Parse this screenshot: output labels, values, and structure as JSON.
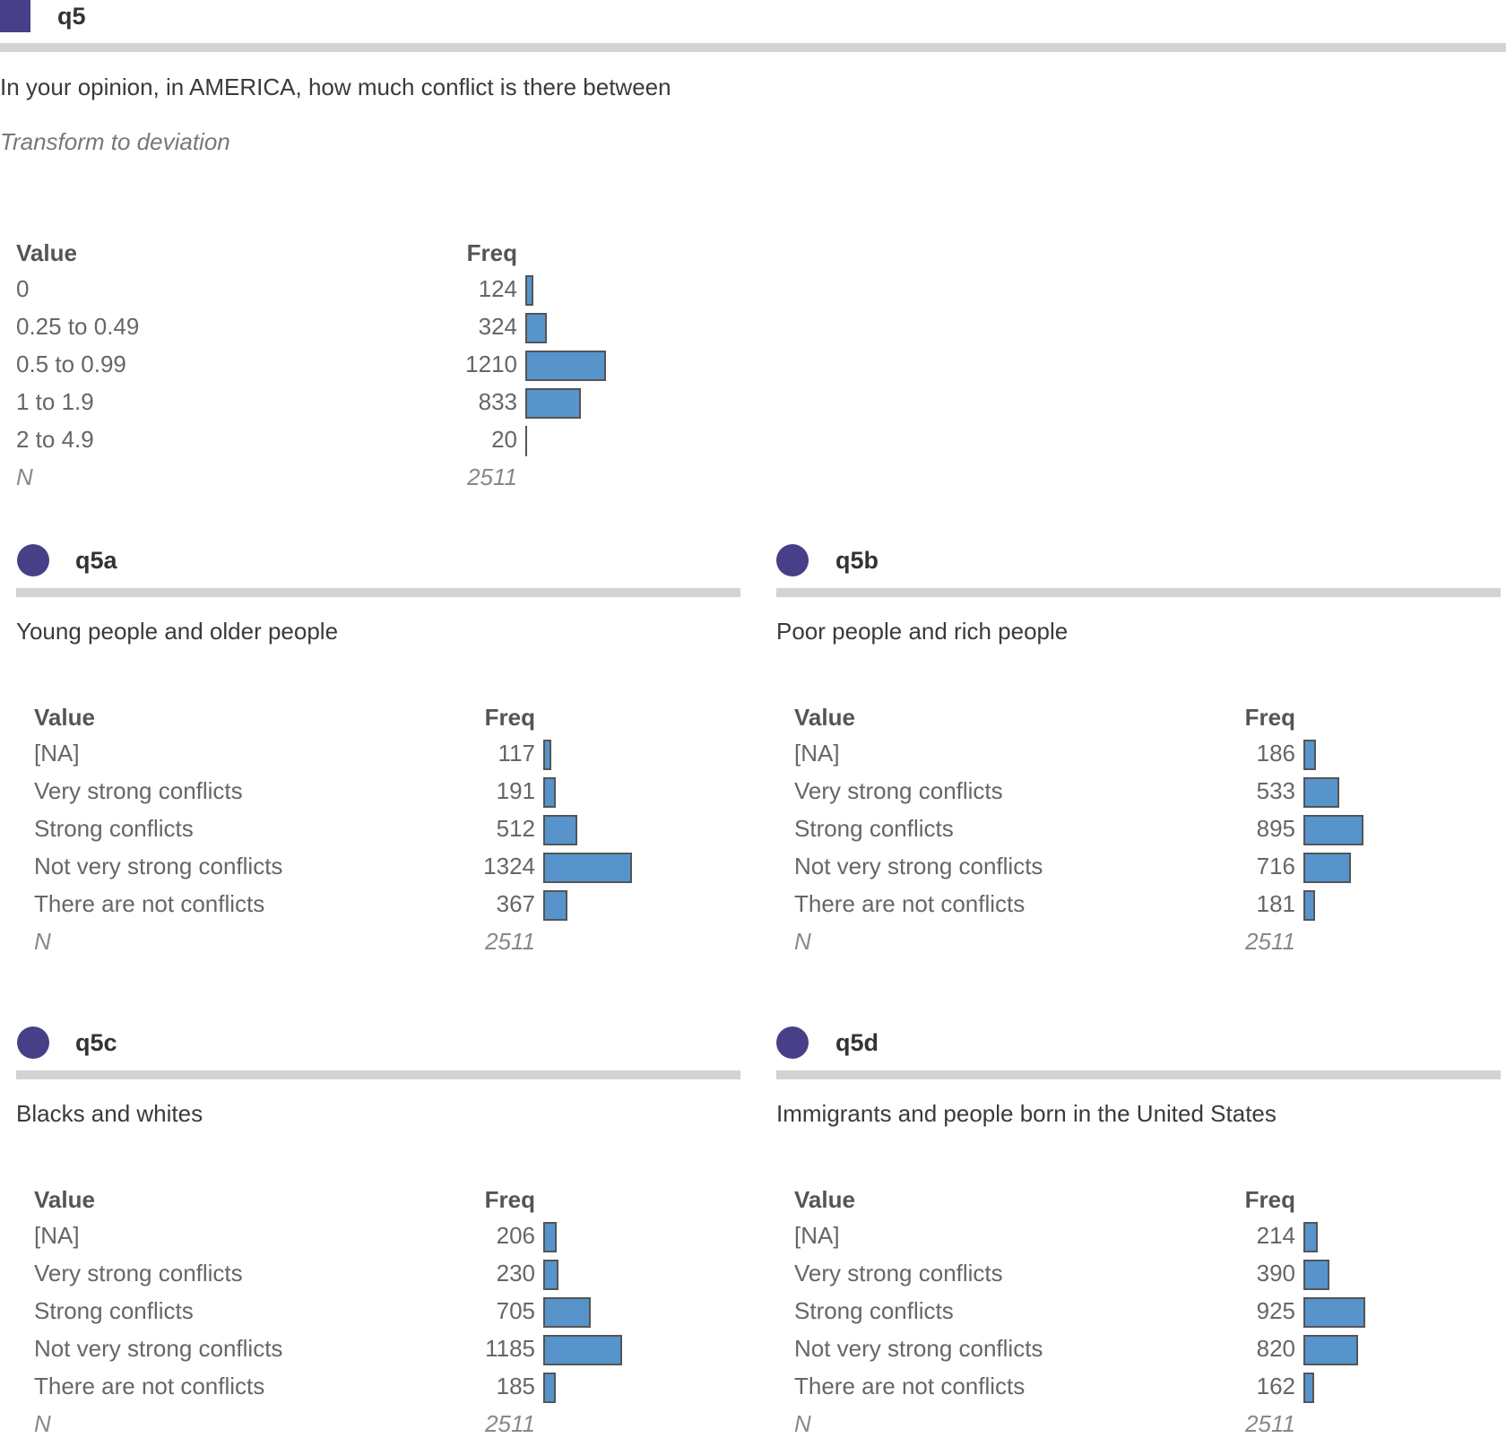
{
  "main": {
    "variable": "q5",
    "question": "In your opinion, in AMERICA, how much conflict is there between",
    "note": "Transform to deviation"
  },
  "colors": {
    "marker": "#473f87",
    "bar_fill": "#5694cb",
    "bar_border": "#555555",
    "rule": "#d3d3d3"
  },
  "table_headers": {
    "value": "Value",
    "freq": "Freq",
    "n_label": "N"
  },
  "chart_data": [
    {
      "type": "bar",
      "orientation": "horizontal",
      "id": "q5",
      "title": "q5",
      "subtitle": "In your opinion, in AMERICA, how much conflict is there between",
      "note": "Transform to deviation",
      "xlabel": "Freq",
      "ylabel": "Value",
      "categories": [
        "0",
        "0.25 to 0.49",
        "0.5 to 0.99",
        "1 to 1.9",
        "2 to 4.9"
      ],
      "values": [
        124,
        324,
        1210,
        833,
        20
      ],
      "n": 2511
    },
    {
      "type": "bar",
      "orientation": "horizontal",
      "id": "q5a",
      "title": "q5a",
      "subtitle": "Young people and older people",
      "xlabel": "Freq",
      "ylabel": "Value",
      "categories": [
        "[NA]",
        "Very strong conflicts",
        "Strong conflicts",
        "Not very strong conflicts",
        "There are not conflicts"
      ],
      "values": [
        117,
        191,
        512,
        1324,
        367
      ],
      "n": 2511
    },
    {
      "type": "bar",
      "orientation": "horizontal",
      "id": "q5b",
      "title": "q5b",
      "subtitle": "Poor people and rich people",
      "xlabel": "Freq",
      "ylabel": "Value",
      "categories": [
        "[NA]",
        "Very strong conflicts",
        "Strong conflicts",
        "Not very strong conflicts",
        "There are not conflicts"
      ],
      "values": [
        186,
        533,
        895,
        716,
        181
      ],
      "n": 2511
    },
    {
      "type": "bar",
      "orientation": "horizontal",
      "id": "q5c",
      "title": "q5c",
      "subtitle": "Blacks and whites",
      "xlabel": "Freq",
      "ylabel": "Value",
      "categories": [
        "[NA]",
        "Very strong conflicts",
        "Strong conflicts",
        "Not very strong conflicts",
        "There are not conflicts"
      ],
      "values": [
        206,
        230,
        705,
        1185,
        185
      ],
      "n": 2511
    },
    {
      "type": "bar",
      "orientation": "horizontal",
      "id": "q5d",
      "title": "q5d",
      "subtitle": "Immigrants and people born in the United States",
      "xlabel": "Freq",
      "ylabel": "Value",
      "categories": [
        "[NA]",
        "Very strong conflicts",
        "Strong conflicts",
        "Not very strong conflicts",
        "There are not conflicts"
      ],
      "values": [
        214,
        390,
        925,
        820,
        162
      ],
      "n": 2511
    }
  ]
}
